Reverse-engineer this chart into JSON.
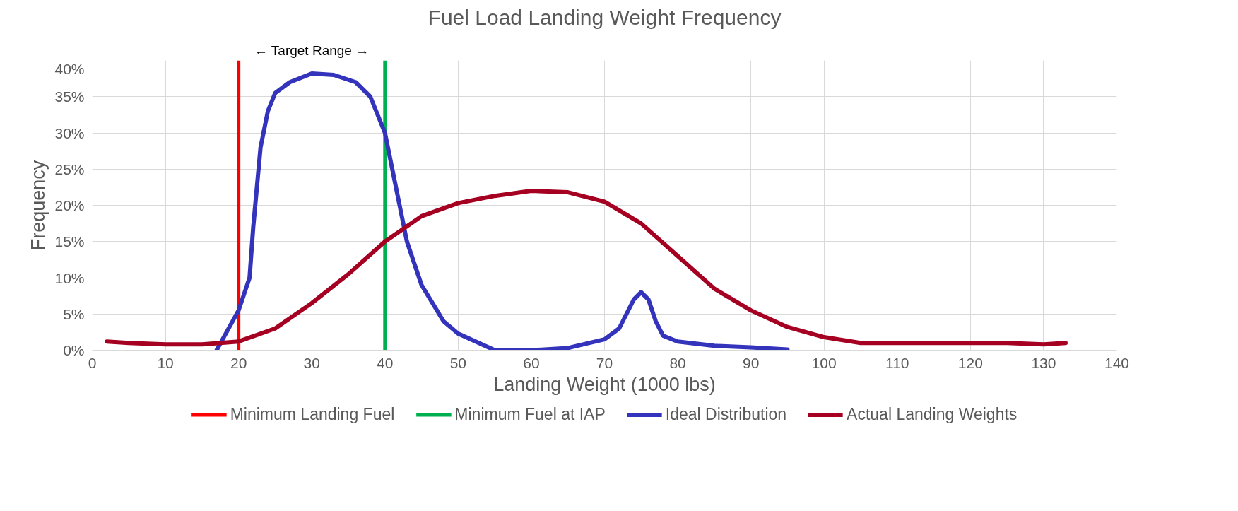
{
  "chart_data": {
    "type": "line",
    "title": "Fuel Load Landing Weight Frequency",
    "xlabel": "Landing Weight (1000 lbs)",
    "ylabel": "Frequency",
    "annotations": [
      "← Target Range →"
    ],
    "xlim": [
      0,
      140
    ],
    "xticks": [
      0,
      10,
      20,
      30,
      40,
      50,
      60,
      70,
      80,
      90,
      100,
      110,
      120,
      130,
      140
    ],
    "ylim": [
      0,
      40
    ],
    "yticks": [
      {
        "value": 0,
        "label": "0%"
      },
      {
        "value": 5,
        "label": "5%"
      },
      {
        "value": 10,
        "label": "10%"
      },
      {
        "value": 15,
        "label": "15%"
      },
      {
        "value": 20,
        "label": "20%"
      },
      {
        "value": 25,
        "label": "25%"
      },
      {
        "value": 30,
        "label": "30%"
      },
      {
        "value": 35,
        "label": "35%"
      },
      {
        "value": 40,
        "label": "40%"
      }
    ],
    "grid": true,
    "legend": "bottom",
    "line_style": "solid",
    "marker": "none",
    "ref_lines": [
      {
        "axis": "x",
        "value": 20,
        "label": "Minimum Landing Fuel",
        "color": "#ff0000"
      },
      {
        "axis": "x",
        "value": 40,
        "label": "Minimum Fuel at IAP",
        "color": "#00b050"
      }
    ],
    "series": [
      {
        "name": "Ideal Distribution",
        "color": "#3333bb",
        "x": [
          17,
          20,
          21.5,
          22,
          23,
          24,
          25,
          27,
          30,
          33,
          36,
          38,
          40,
          42,
          43,
          45,
          48,
          50,
          55,
          60,
          65,
          70,
          72,
          74,
          75,
          76,
          77,
          78,
          80,
          85,
          90,
          95
        ],
        "values": [
          0,
          5.5,
          10,
          17,
          28,
          33,
          35.5,
          37,
          38.2,
          38,
          37,
          35,
          30,
          20,
          15,
          9,
          4,
          2.3,
          0,
          0,
          0.3,
          1.5,
          3,
          7,
          8,
          7,
          4,
          2,
          1.2,
          0.6,
          0.4,
          0.1
        ]
      },
      {
        "name": "Actual Landing Weights",
        "color": "#a50021",
        "x": [
          2,
          5,
          10,
          15,
          20,
          25,
          30,
          35,
          40,
          45,
          50,
          55,
          60,
          65,
          70,
          75,
          80,
          85,
          90,
          95,
          100,
          105,
          110,
          120,
          125,
          130,
          133
        ],
        "values": [
          1.2,
          1.0,
          0.8,
          0.8,
          1.2,
          3,
          6.5,
          10.5,
          15,
          18.5,
          20.3,
          21.3,
          22,
          21.8,
          20.5,
          17.5,
          13,
          8.5,
          5.5,
          3.2,
          1.8,
          1.0,
          1.0,
          1.0,
          1.0,
          0.8,
          1.0
        ]
      }
    ]
  }
}
